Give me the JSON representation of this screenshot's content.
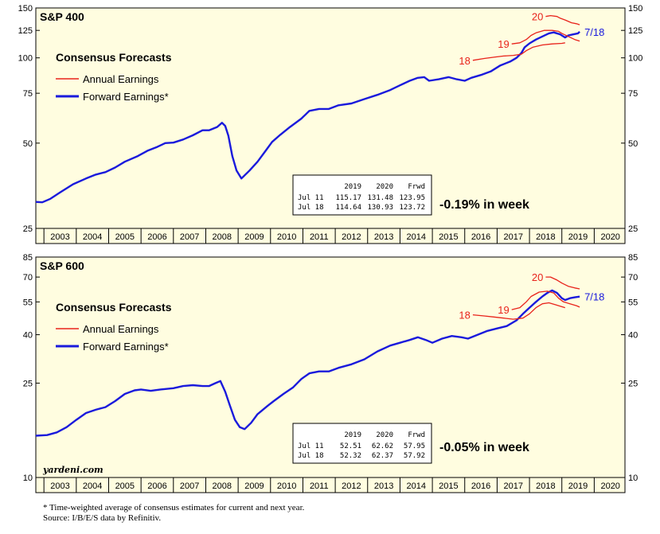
{
  "years": [
    "2003",
    "2004",
    "2005",
    "2006",
    "2007",
    "2008",
    "2009",
    "2010",
    "2011",
    "2012",
    "2013",
    "2014",
    "2015",
    "2016",
    "2017",
    "2018",
    "2019",
    "2020"
  ],
  "colors": {
    "annual": "#e8231b",
    "forward": "#1a1adc",
    "panel": "#fffde0"
  },
  "legend": {
    "heading": "Consensus Forecasts",
    "annual": "Annual Earnings",
    "forward": "Forward Earnings*"
  },
  "branding": "yardeni.com",
  "footnote": "* Time-weighted average of consensus estimates for current and next year.",
  "source": "Source: I/B/E/S data by Refinitiv.",
  "chart_data": [
    {
      "type": "line",
      "title": "S&P 400",
      "scale": "log",
      "ylim": [
        25,
        150
      ],
      "yticks": [
        25,
        50,
        75,
        100,
        125,
        150
      ],
      "x_range": [
        2002.75,
        2020.95
      ],
      "week_change": "-0.19% in week",
      "end_label": "7/18",
      "table": {
        "header": [
          "2019",
          "2020",
          "Frwd"
        ],
        "rows": [
          {
            "date": "Jul 11",
            "values": [
              "115.17",
              "131.48",
              "123.95"
            ]
          },
          {
            "date": "Jul 18",
            "values": [
              "114.64",
              "130.93",
              "123.72"
            ]
          }
        ]
      },
      "series": [
        {
          "kind": "forward",
          "values": [
            [
              2002.75,
              31
            ],
            [
              2002.95,
              30.9
            ],
            [
              2003.2,
              31.8
            ],
            [
              2003.5,
              33.5
            ],
            [
              2003.9,
              35.8
            ],
            [
              2004.3,
              37.5
            ],
            [
              2004.6,
              38.7
            ],
            [
              2004.9,
              39.5
            ],
            [
              2005.2,
              41
            ],
            [
              2005.5,
              43
            ],
            [
              2005.9,
              45
            ],
            [
              2006.2,
              47
            ],
            [
              2006.5,
              48.5
            ],
            [
              2006.75,
              50
            ],
            [
              2007.0,
              50.2
            ],
            [
              2007.3,
              51.5
            ],
            [
              2007.6,
              53.3
            ],
            [
              2007.9,
              55.5
            ],
            [
              2008.1,
              55.5
            ],
            [
              2008.35,
              57
            ],
            [
              2008.5,
              59
            ],
            [
              2008.6,
              57.5
            ],
            [
              2008.7,
              53
            ],
            [
              2008.82,
              45
            ],
            [
              2008.95,
              40
            ],
            [
              2009.1,
              37.5
            ],
            [
              2009.35,
              40
            ],
            [
              2009.6,
              43
            ],
            [
              2009.85,
              47
            ],
            [
              2010.05,
              50.5
            ],
            [
              2010.3,
              53.5
            ],
            [
              2010.6,
              57
            ],
            [
              2010.95,
              61
            ],
            [
              2011.2,
              65
            ],
            [
              2011.5,
              66
            ],
            [
              2011.8,
              66
            ],
            [
              2012.1,
              68
            ],
            [
              2012.5,
              69
            ],
            [
              2012.9,
              71.5
            ],
            [
              2013.3,
              74
            ],
            [
              2013.7,
              77
            ],
            [
              2014.0,
              80
            ],
            [
              2014.3,
              83
            ],
            [
              2014.55,
              85
            ],
            [
              2014.75,
              85.5
            ],
            [
              2014.9,
              83
            ],
            [
              2015.2,
              84
            ],
            [
              2015.5,
              85.5
            ],
            [
              2015.75,
              84
            ],
            [
              2016.0,
              83
            ],
            [
              2016.2,
              85
            ],
            [
              2016.5,
              87
            ],
            [
              2016.8,
              89.5
            ],
            [
              2017.1,
              94
            ],
            [
              2017.4,
              97
            ],
            [
              2017.6,
              100
            ],
            [
              2017.75,
              104
            ],
            [
              2017.85,
              109
            ],
            [
              2018.0,
              112.5
            ],
            [
              2018.2,
              116
            ],
            [
              2018.4,
              119
            ],
            [
              2018.6,
              122
            ],
            [
              2018.75,
              123
            ],
            [
              2018.95,
              121
            ],
            [
              2019.1,
              118
            ],
            [
              2019.2,
              120
            ],
            [
              2019.35,
              121
            ],
            [
              2019.5,
              122
            ],
            [
              2019.55,
              123.7
            ]
          ]
        },
        {
          "kind": "annual",
          "label": "18",
          "values": [
            [
              2016.25,
              98
            ],
            [
              2016.6,
              99.5
            ],
            [
              2016.9,
              100.5
            ],
            [
              2017.2,
              101.5
            ],
            [
              2017.5,
              102
            ],
            [
              2017.75,
              103
            ],
            [
              2017.9,
              106
            ],
            [
              2018.1,
              109
            ],
            [
              2018.4,
              111
            ],
            [
              2018.7,
              112
            ],
            [
              2019.0,
              112.5
            ],
            [
              2019.1,
              113
            ]
          ]
        },
        {
          "kind": "annual",
          "label": "19",
          "values": [
            [
              2017.45,
              112
            ],
            [
              2017.7,
              113
            ],
            [
              2017.9,
              116
            ],
            [
              2018.05,
              120
            ],
            [
              2018.2,
              122.5
            ],
            [
              2018.45,
              125
            ],
            [
              2018.7,
              125
            ],
            [
              2018.9,
              124
            ],
            [
              2019.0,
              122
            ],
            [
              2019.2,
              119
            ],
            [
              2019.4,
              116
            ],
            [
              2019.55,
              114.6
            ]
          ]
        },
        {
          "kind": "annual",
          "label": "20",
          "values": [
            [
              2018.5,
              140
            ],
            [
              2018.65,
              141
            ],
            [
              2018.85,
              140
            ],
            [
              2018.95,
              138
            ],
            [
              2019.1,
              136
            ],
            [
              2019.3,
              133
            ],
            [
              2019.45,
              132
            ],
            [
              2019.55,
              130.9
            ]
          ]
        }
      ]
    },
    {
      "type": "line",
      "title": "S&P 600",
      "scale": "log",
      "ylim": [
        10,
        85
      ],
      "yticks": [
        10,
        25,
        40,
        55,
        70,
        85
      ],
      "x_range": [
        2002.75,
        2020.95
      ],
      "week_change": "-0.05% in week",
      "end_label": "7/18",
      "table": {
        "header": [
          "2019",
          "2020",
          "Frwd"
        ],
        "rows": [
          {
            "date": "Jul 11",
            "values": [
              "52.51",
              "62.62",
              "57.95"
            ]
          },
          {
            "date": "Jul 18",
            "values": [
              "52.32",
              "62.37",
              "57.92"
            ]
          }
        ]
      },
      "series": [
        {
          "kind": "forward",
          "values": [
            [
              2002.75,
              15
            ],
            [
              2003.1,
              15.1
            ],
            [
              2003.4,
              15.5
            ],
            [
              2003.7,
              16.3
            ],
            [
              2004.0,
              17.5
            ],
            [
              2004.3,
              18.7
            ],
            [
              2004.6,
              19.3
            ],
            [
              2004.9,
              19.8
            ],
            [
              2005.2,
              21
            ],
            [
              2005.5,
              22.5
            ],
            [
              2005.8,
              23.3
            ],
            [
              2006.0,
              23.5
            ],
            [
              2006.3,
              23.2
            ],
            [
              2006.6,
              23.5
            ],
            [
              2007.0,
              23.8
            ],
            [
              2007.3,
              24.3
            ],
            [
              2007.6,
              24.5
            ],
            [
              2007.9,
              24.3
            ],
            [
              2008.1,
              24.3
            ],
            [
              2008.3,
              25
            ],
            [
              2008.45,
              25.5
            ],
            [
              2008.6,
              23
            ],
            [
              2008.75,
              20
            ],
            [
              2008.9,
              17.5
            ],
            [
              2009.05,
              16.3
            ],
            [
              2009.2,
              16
            ],
            [
              2009.4,
              17
            ],
            [
              2009.6,
              18.5
            ],
            [
              2009.9,
              20
            ],
            [
              2010.1,
              21
            ],
            [
              2010.4,
              22.5
            ],
            [
              2010.7,
              24
            ],
            [
              2010.95,
              26
            ],
            [
              2011.2,
              27.5
            ],
            [
              2011.5,
              28
            ],
            [
              2011.8,
              28
            ],
            [
              2012.1,
              29
            ],
            [
              2012.5,
              30
            ],
            [
              2012.9,
              31.5
            ],
            [
              2013.3,
              34
            ],
            [
              2013.7,
              36
            ],
            [
              2014.0,
              37
            ],
            [
              2014.3,
              38
            ],
            [
              2014.55,
              39
            ],
            [
              2014.8,
              38
            ],
            [
              2015.0,
              37
            ],
            [
              2015.3,
              38.5
            ],
            [
              2015.6,
              39.5
            ],
            [
              2015.9,
              39
            ],
            [
              2016.1,
              38.5
            ],
            [
              2016.4,
              40
            ],
            [
              2016.7,
              41.5
            ],
            [
              2017.0,
              42.5
            ],
            [
              2017.3,
              43.5
            ],
            [
              2017.6,
              46
            ],
            [
              2017.8,
              49
            ],
            [
              2018.0,
              52
            ],
            [
              2018.2,
              55
            ],
            [
              2018.4,
              58
            ],
            [
              2018.55,
              60
            ],
            [
              2018.7,
              61.5
            ],
            [
              2018.85,
              60
            ],
            [
              2019.0,
              57
            ],
            [
              2019.1,
              56
            ],
            [
              2019.25,
              57
            ],
            [
              2019.4,
              57.5
            ],
            [
              2019.55,
              57.9
            ]
          ]
        },
        {
          "kind": "annual",
          "label": "18",
          "values": [
            [
              2016.25,
              48.5
            ],
            [
              2016.6,
              48
            ],
            [
              2016.9,
              47.5
            ],
            [
              2017.2,
              47
            ],
            [
              2017.5,
              46.5
            ],
            [
              2017.8,
              47
            ],
            [
              2018.0,
              49
            ],
            [
              2018.2,
              52
            ],
            [
              2018.4,
              54
            ],
            [
              2018.6,
              54.5
            ],
            [
              2018.8,
              53.5
            ],
            [
              2019.0,
              52.5
            ],
            [
              2019.1,
              52
            ]
          ]
        },
        {
          "kind": "annual",
          "label": "19",
          "values": [
            [
              2017.45,
              51
            ],
            [
              2017.7,
              52
            ],
            [
              2017.9,
              55
            ],
            [
              2018.05,
              58
            ],
            [
              2018.3,
              60.5
            ],
            [
              2018.55,
              61
            ],
            [
              2018.75,
              60
            ],
            [
              2018.9,
              57
            ],
            [
              2019.05,
              55
            ],
            [
              2019.25,
              54
            ],
            [
              2019.45,
              53
            ],
            [
              2019.55,
              52.3
            ]
          ]
        },
        {
          "kind": "annual",
          "label": "20",
          "values": [
            [
              2018.5,
              70
            ],
            [
              2018.65,
              70
            ],
            [
              2018.85,
              68
            ],
            [
              2019.0,
              66
            ],
            [
              2019.2,
              64
            ],
            [
              2019.4,
              63
            ],
            [
              2019.55,
              62.4
            ]
          ]
        }
      ]
    }
  ]
}
